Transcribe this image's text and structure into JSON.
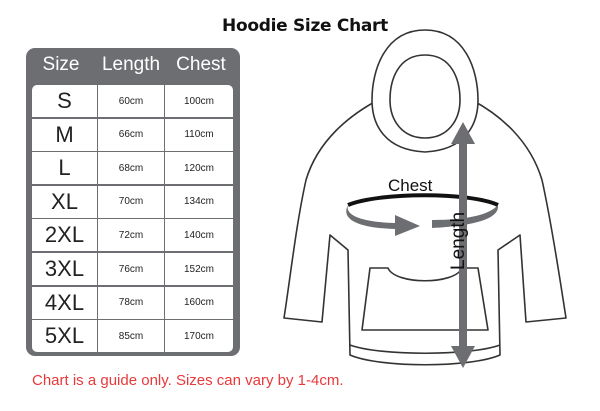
{
  "title": "Hoodie Size Chart",
  "table": {
    "headers": [
      "Size",
      "Length",
      "Chest"
    ],
    "rows": [
      [
        "S",
        "60cm",
        "100cm"
      ],
      [
        "M",
        "66cm",
        "110cm"
      ],
      [
        "L",
        "68cm",
        "120cm"
      ],
      [
        "XL",
        "70cm",
        "134cm"
      ],
      [
        "2XL",
        "72cm",
        "140cm"
      ],
      [
        "3XL",
        "76cm",
        "152cm"
      ],
      [
        "4XL",
        "78cm",
        "160cm"
      ],
      [
        "5XL",
        "85cm",
        "170cm"
      ]
    ]
  },
  "diagram": {
    "chest_label": "Chest",
    "length_label": "Length"
  },
  "note": "Chart is a guide only. Sizes can vary by 1-4cm.",
  "colors": {
    "table_bg": "#6d6e71",
    "note": "#e8393a",
    "arrow": "#6d6e71"
  }
}
